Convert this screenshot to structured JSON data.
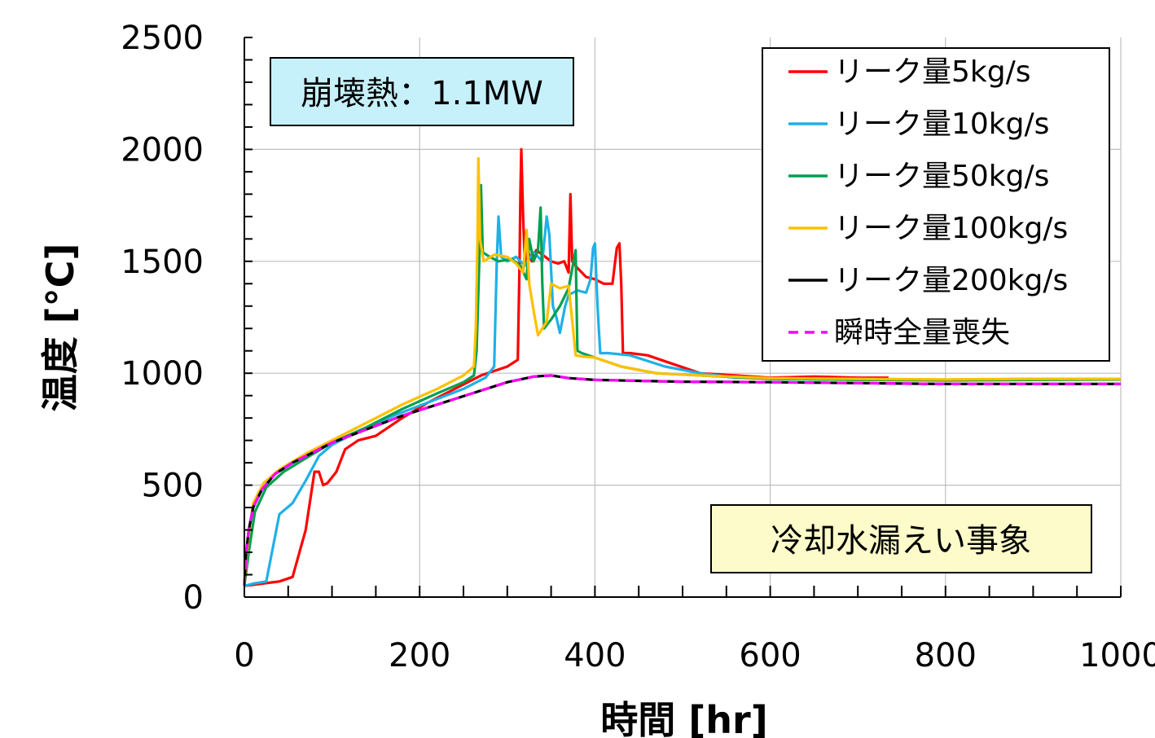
{
  "chart_data": {
    "type": "line",
    "xlabel": "時間 [hr]",
    "ylabel": "温度 [°C]",
    "xlim": [
      0,
      1000
    ],
    "ylim": [
      0,
      2500
    ],
    "x_ticks": [
      "0",
      "200",
      "400",
      "600",
      "800",
      "1000"
    ],
    "y_ticks": [
      "0",
      "500",
      "1000",
      "1500",
      "2000",
      "2500"
    ],
    "grid": true,
    "legend_position": "top-right",
    "annotations": {
      "decay_heat": "崩壊熱：1.1MW",
      "event": "冷却水漏えい事象"
    },
    "series": [
      {
        "name": "リーク量5kg/s",
        "color": "#ff0000",
        "dash": false,
        "points": [
          [
            0,
            50
          ],
          [
            20,
            60
          ],
          [
            40,
            70
          ],
          [
            55,
            90
          ],
          [
            70,
            300
          ],
          [
            80,
            560
          ],
          [
            85,
            560
          ],
          [
            90,
            500
          ],
          [
            95,
            510
          ],
          [
            105,
            560
          ],
          [
            115,
            660
          ],
          [
            130,
            700
          ],
          [
            150,
            720
          ],
          [
            180,
            800
          ],
          [
            210,
            870
          ],
          [
            240,
            930
          ],
          [
            270,
            990
          ],
          [
            300,
            1030
          ],
          [
            312,
            1060
          ],
          [
            314,
            1500
          ],
          [
            315,
            1800
          ],
          [
            316,
            2000
          ],
          [
            318,
            1700
          ],
          [
            320,
            1500
          ],
          [
            323,
            1550
          ],
          [
            328,
            1500
          ],
          [
            333,
            1550
          ],
          [
            340,
            1530
          ],
          [
            350,
            1500
          ],
          [
            358,
            1490
          ],
          [
            365,
            1500
          ],
          [
            370,
            1450
          ],
          [
            372,
            1800
          ],
          [
            374,
            1500
          ],
          [
            380,
            1470
          ],
          [
            390,
            1430
          ],
          [
            400,
            1420
          ],
          [
            410,
            1400
          ],
          [
            420,
            1400
          ],
          [
            425,
            1560
          ],
          [
            428,
            1580
          ],
          [
            430,
            1400
          ],
          [
            432,
            1090
          ],
          [
            440,
            1090
          ],
          [
            460,
            1080
          ],
          [
            490,
            1040
          ],
          [
            520,
            1000
          ],
          [
            560,
            990
          ],
          [
            600,
            980
          ],
          [
            650,
            985
          ],
          [
            700,
            980
          ],
          [
            735,
            980
          ]
        ]
      },
      {
        "name": "リーク量10kg/s",
        "color": "#1fb0e8",
        "dash": false,
        "points": [
          [
            0,
            50
          ],
          [
            10,
            60
          ],
          [
            25,
            70
          ],
          [
            40,
            370
          ],
          [
            55,
            420
          ],
          [
            70,
            520
          ],
          [
            85,
            630
          ],
          [
            100,
            680
          ],
          [
            130,
            740
          ],
          [
            170,
            810
          ],
          [
            210,
            870
          ],
          [
            250,
            930
          ],
          [
            275,
            980
          ],
          [
            285,
            1030
          ],
          [
            288,
            1500
          ],
          [
            290,
            1700
          ],
          [
            293,
            1520
          ],
          [
            300,
            1500
          ],
          [
            310,
            1520
          ],
          [
            320,
            1480
          ],
          [
            330,
            1540
          ],
          [
            340,
            1500
          ],
          [
            345,
            1700
          ],
          [
            348,
            1620
          ],
          [
            352,
            1300
          ],
          [
            356,
            1250
          ],
          [
            360,
            1180
          ],
          [
            366,
            1300
          ],
          [
            370,
            1350
          ],
          [
            380,
            1370
          ],
          [
            390,
            1360
          ],
          [
            395,
            1420
          ],
          [
            398,
            1560
          ],
          [
            400,
            1580
          ],
          [
            403,
            1300
          ],
          [
            406,
            1090
          ],
          [
            415,
            1090
          ],
          [
            440,
            1080
          ],
          [
            480,
            1030
          ],
          [
            520,
            1000
          ],
          [
            560,
            980
          ],
          [
            620,
            975
          ],
          [
            720,
            970
          ],
          [
            800,
            970
          ],
          [
            900,
            975
          ],
          [
            1000,
            975
          ]
        ]
      },
      {
        "name": "リーク量50kg/s",
        "color": "#00a050",
        "dash": false,
        "points": [
          [
            0,
            50
          ],
          [
            5,
            200
          ],
          [
            12,
            380
          ],
          [
            25,
            490
          ],
          [
            45,
            560
          ],
          [
            70,
            620
          ],
          [
            100,
            690
          ],
          [
            140,
            760
          ],
          [
            180,
            840
          ],
          [
            220,
            910
          ],
          [
            250,
            960
          ],
          [
            262,
            990
          ],
          [
            265,
            1100
          ],
          [
            268,
            1500
          ],
          [
            270,
            1840
          ],
          [
            272,
            1540
          ],
          [
            280,
            1520
          ],
          [
            290,
            1500
          ],
          [
            305,
            1510
          ],
          [
            315,
            1480
          ],
          [
            322,
            1420
          ],
          [
            325,
            1600
          ],
          [
            330,
            1500
          ],
          [
            335,
            1550
          ],
          [
            338,
            1740
          ],
          [
            340,
            1400
          ],
          [
            342,
            1200
          ],
          [
            350,
            1240
          ],
          [
            360,
            1300
          ],
          [
            370,
            1380
          ],
          [
            378,
            1550
          ],
          [
            380,
            1100
          ],
          [
            385,
            1090
          ],
          [
            400,
            1070
          ],
          [
            430,
            1030
          ],
          [
            470,
            1000
          ],
          [
            520,
            990
          ],
          [
            600,
            975
          ],
          [
            700,
            970
          ],
          [
            800,
            968
          ],
          [
            900,
            970
          ],
          [
            1000,
            972
          ]
        ]
      },
      {
        "name": "リーク量100kg/s",
        "color": "#ffc000",
        "dash": false,
        "points": [
          [
            0,
            50
          ],
          [
            4,
            250
          ],
          [
            10,
            420
          ],
          [
            22,
            510
          ],
          [
            40,
            570
          ],
          [
            70,
            640
          ],
          [
            100,
            700
          ],
          [
            140,
            780
          ],
          [
            180,
            860
          ],
          [
            220,
            930
          ],
          [
            250,
            990
          ],
          [
            262,
            1030
          ],
          [
            264,
            1200
          ],
          [
            266,
            1600
          ],
          [
            267,
            1960
          ],
          [
            269,
            1600
          ],
          [
            273,
            1500
          ],
          [
            285,
            1530
          ],
          [
            300,
            1520
          ],
          [
            310,
            1490
          ],
          [
            318,
            1450
          ],
          [
            322,
            1640
          ],
          [
            325,
            1400
          ],
          [
            330,
            1280
          ],
          [
            335,
            1170
          ],
          [
            345,
            1230
          ],
          [
            350,
            1400
          ],
          [
            360,
            1380
          ],
          [
            370,
            1390
          ],
          [
            375,
            1200
          ],
          [
            378,
            1080
          ],
          [
            385,
            1075
          ],
          [
            400,
            1070
          ],
          [
            430,
            1030
          ],
          [
            470,
            1000
          ],
          [
            520,
            990
          ],
          [
            600,
            978
          ],
          [
            700,
            975
          ],
          [
            800,
            972
          ],
          [
            900,
            975
          ],
          [
            1000,
            975
          ]
        ]
      },
      {
        "name": "リーク量200kg/s",
        "color": "#000000",
        "dash": false,
        "points": [
          [
            0,
            50
          ],
          [
            2,
            200
          ],
          [
            5,
            300
          ],
          [
            10,
            400
          ],
          [
            20,
            480
          ],
          [
            35,
            550
          ],
          [
            55,
            600
          ],
          [
            80,
            650
          ],
          [
            100,
            690
          ],
          [
            140,
            750
          ],
          [
            180,
            810
          ],
          [
            220,
            860
          ],
          [
            260,
            910
          ],
          [
            300,
            960
          ],
          [
            330,
            985
          ],
          [
            350,
            990
          ],
          [
            370,
            978
          ],
          [
            400,
            970
          ],
          [
            450,
            966
          ],
          [
            500,
            962
          ],
          [
            600,
            960
          ],
          [
            700,
            956
          ],
          [
            800,
            952
          ],
          [
            900,
            952
          ],
          [
            1000,
            952
          ]
        ]
      },
      {
        "name": "瞬時全量喪失",
        "color": "#ff00ff",
        "dash": true,
        "points": [
          [
            0,
            50
          ],
          [
            2,
            200
          ],
          [
            5,
            300
          ],
          [
            10,
            400
          ],
          [
            20,
            480
          ],
          [
            35,
            550
          ],
          [
            55,
            600
          ],
          [
            80,
            650
          ],
          [
            100,
            690
          ],
          [
            140,
            750
          ],
          [
            180,
            810
          ],
          [
            220,
            860
          ],
          [
            260,
            910
          ],
          [
            300,
            960
          ],
          [
            330,
            985
          ],
          [
            350,
            990
          ],
          [
            370,
            978
          ],
          [
            400,
            970
          ],
          [
            450,
            966
          ],
          [
            500,
            962
          ],
          [
            600,
            960
          ],
          [
            700,
            956
          ],
          [
            800,
            952
          ],
          [
            900,
            952
          ],
          [
            1000,
            952
          ]
        ]
      }
    ]
  }
}
